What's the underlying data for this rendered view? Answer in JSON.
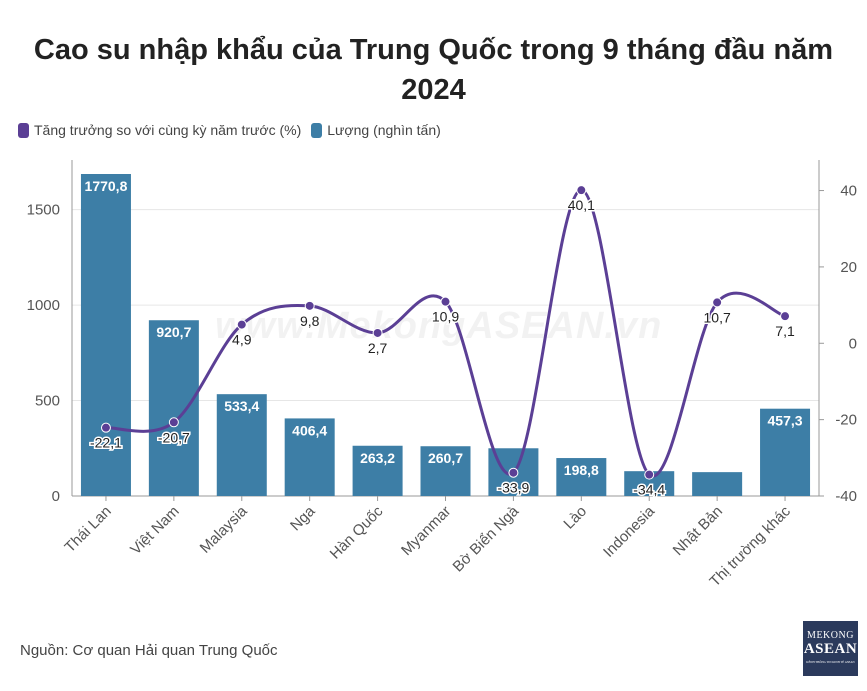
{
  "header": {
    "title": "Cao su nhập khẩu của Trung Quốc trong 9 tháng đầu năm 2024"
  },
  "legend": {
    "line_label": "Tăng trưởng so với cùng kỳ năm trước (%)",
    "bar_label": "Lượng (nghìn tấn)"
  },
  "footer": {
    "source": "Nguồn: Cơ quan Hải quan Trung Quốc"
  },
  "logo": {
    "line1": "MEKONG",
    "line2": "ASEAN",
    "line3": "KÊNH THÔNG TIN KINH TẾ ASEAN"
  },
  "watermark": "www.MekongASEAN.vn",
  "colors": {
    "bar": "#3d7ea6",
    "line": "#5b3f95",
    "bar_label_text": "#ffffff"
  },
  "chart_data": {
    "type": "bar",
    "categories": [
      "Thái Lan",
      "Việt Nam",
      "Malaysia",
      "Nga",
      "Hàn Quốc",
      "Myanmar",
      "Bờ Biển Ngà",
      "Lào",
      "Indonesia",
      "Nhật Bản",
      "Thị trường khác"
    ],
    "series": [
      {
        "name": "Lượng (nghìn tấn)",
        "type": "bar",
        "axis": "left",
        "values": [
          1770.8,
          920.7,
          533.4,
          406.4,
          263.2,
          260.7,
          250,
          198.8,
          130,
          125,
          457.3
        ],
        "labels": [
          "1770,8",
          "920,7",
          "533,4",
          "406,4",
          "263,2",
          "260,7",
          "",
          "198,8",
          "",
          "",
          "457,3"
        ]
      },
      {
        "name": "Tăng trưởng so với cùng kỳ năm trước (%)",
        "type": "line",
        "axis": "right",
        "smooth": true,
        "values": [
          -22.1,
          -20.7,
          4.9,
          9.8,
          2.7,
          10.9,
          -33.9,
          40.1,
          -34.4,
          10.7,
          7.1
        ],
        "labels": [
          "-22,1",
          "-20,7",
          "4,9",
          "9,8",
          "2,7",
          "10,9",
          "-33,9",
          "40,1",
          "-34,4",
          "10,7",
          "7,1"
        ]
      }
    ],
    "y_left": {
      "ticks": [
        0,
        500,
        1000,
        1500
      ],
      "tick_labels": [
        "0",
        "500",
        "1000",
        "1500"
      ],
      "ylim": [
        0,
        1760
      ]
    },
    "y_right": {
      "ticks": [
        -40,
        -20,
        0,
        20,
        40
      ],
      "tick_labels": [
        "-40",
        "-20",
        "0",
        "20",
        "40"
      ],
      "ylim": [
        -40,
        48
      ]
    },
    "grid": true,
    "legend_position": "top-left"
  }
}
